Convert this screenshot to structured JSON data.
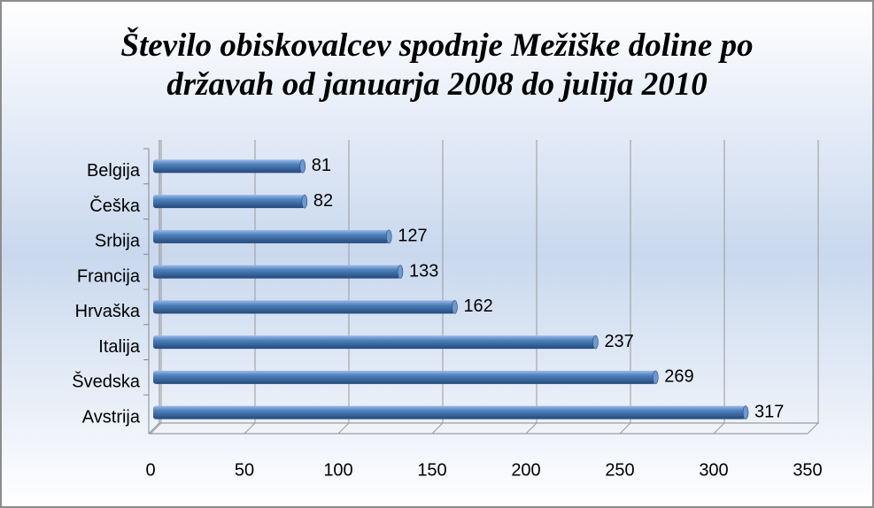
{
  "chart_data": {
    "type": "bar",
    "orientation": "horizontal",
    "title": "Število obiskovalcev spodnje Mežiške doline po državah od januarja 2008 do julija 2010",
    "categories": [
      "Belgija",
      "Češka",
      "Srbija",
      "Francija",
      "Hrvaška",
      "Italija",
      "Švedska",
      "Avstrija"
    ],
    "values": [
      81,
      82,
      127,
      133,
      162,
      237,
      269,
      317
    ],
    "color": "#4f81bd",
    "xlim": [
      0,
      350
    ],
    "xticks": [
      0,
      50,
      100,
      150,
      200,
      250,
      300,
      350
    ],
    "grid": true
  }
}
